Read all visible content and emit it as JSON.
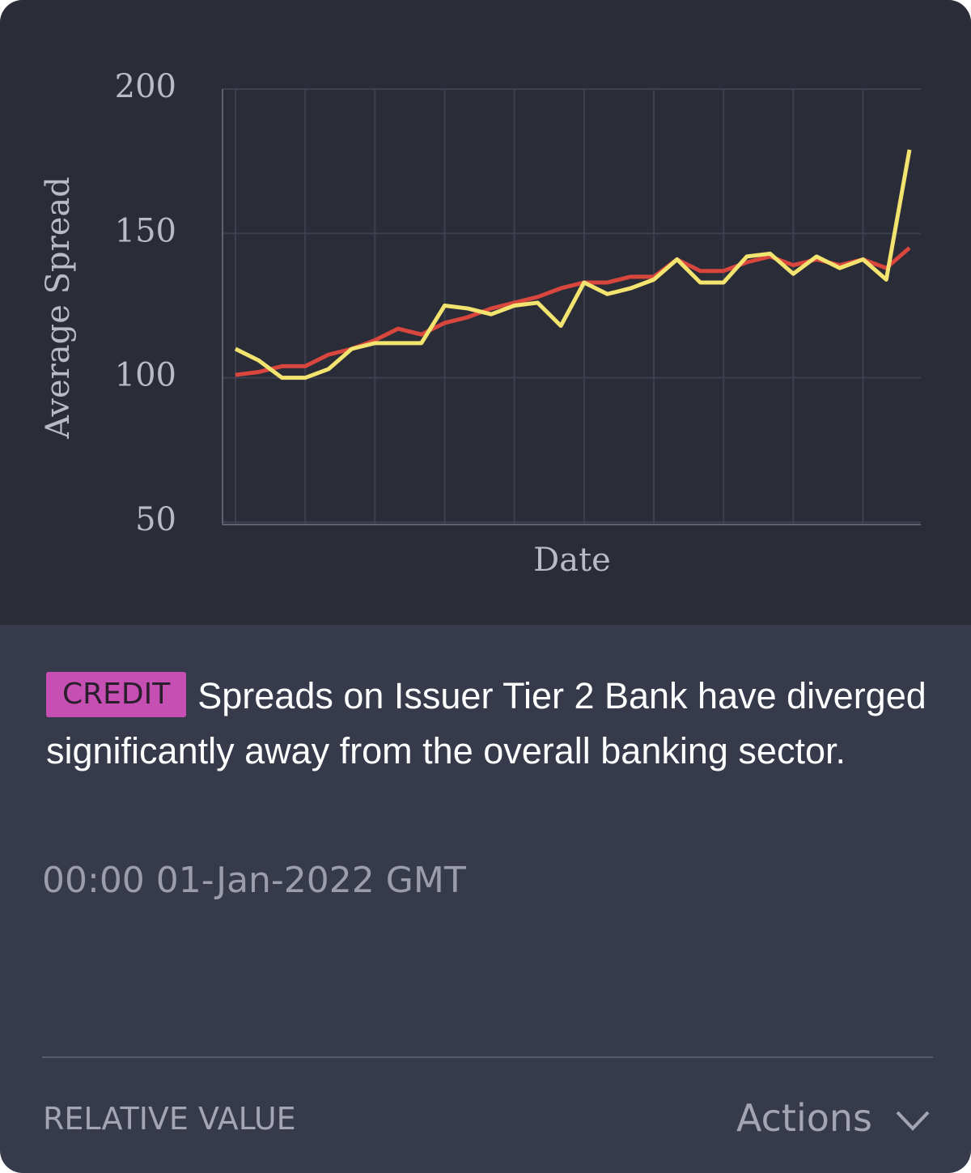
{
  "chart_data": {
    "type": "line",
    "y_label": "Average Spread",
    "x_label": "Date",
    "categories": [
      null,
      null,
      null,
      null,
      null,
      null,
      null,
      null,
      null,
      null,
      null,
      null,
      null,
      null,
      null,
      null,
      null,
      null,
      null,
      null,
      null,
      null,
      null,
      null,
      null,
      null,
      null,
      null,
      null,
      null
    ],
    "series": [
      {
        "color": "#d9463e",
        "values": [
          101,
          102,
          104,
          104,
          108,
          110,
          113,
          117,
          115,
          119,
          121,
          124,
          126,
          128,
          131,
          133,
          133,
          135,
          135,
          141,
          137,
          137,
          140,
          142,
          139,
          141,
          139,
          141,
          138,
          145
        ]
      },
      {
        "color": "#f2e46e",
        "values": [
          110,
          106,
          100,
          100,
          103,
          110,
          112,
          112,
          112,
          125,
          124,
          122,
          125,
          126,
          118,
          133,
          129,
          131,
          134,
          141,
          133,
          133,
          142,
          143,
          136,
          142,
          138,
          141,
          134,
          179
        ]
      }
    ],
    "ylim": [
      50,
      200
    ],
    "yticks": [
      50,
      100,
      150,
      200
    ],
    "grid": true
  },
  "tag": "CREDIT",
  "message": "Spreads on Issuer Tier 2 Bank have diverged significantly away from the overall banking sector.",
  "timestamp": "00:00 01-Jan-2022 GMT",
  "footer": {
    "category": "RELATIVE VALUE",
    "actions": "Actions"
  }
}
